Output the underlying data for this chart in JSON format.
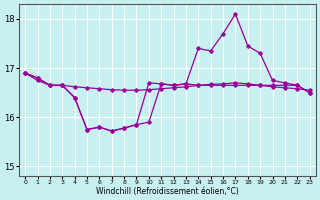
{
  "xlabel": "Windchill (Refroidissement éolien,°C)",
  "bg_color": "#c8f0f0",
  "line_color": "#990099",
  "grid_color": "#ffffff",
  "xlim": [
    -0.5,
    23.5
  ],
  "ylim": [
    14.8,
    18.3
  ],
  "yticks": [
    15,
    16,
    17,
    18
  ],
  "xticks": [
    0,
    1,
    2,
    3,
    4,
    5,
    6,
    7,
    8,
    9,
    10,
    11,
    12,
    13,
    14,
    15,
    16,
    17,
    18,
    19,
    20,
    21,
    22,
    23
  ],
  "hours": [
    0,
    1,
    2,
    3,
    4,
    5,
    6,
    7,
    8,
    9,
    10,
    11,
    12,
    13,
    14,
    15,
    16,
    17,
    18,
    19,
    20,
    21,
    22,
    23
  ],
  "line_flat": [
    16.9,
    16.75,
    16.65,
    16.65,
    16.62,
    16.6,
    16.58,
    16.56,
    16.55,
    16.55,
    16.56,
    16.58,
    16.6,
    16.62,
    16.65,
    16.67,
    16.68,
    16.7,
    16.68,
    16.65,
    16.62,
    16.6,
    16.58,
    16.55
  ],
  "line_dip": [
    16.9,
    16.8,
    16.65,
    16.65,
    16.4,
    15.75,
    15.8,
    15.72,
    15.78,
    15.85,
    16.7,
    16.68,
    16.65,
    16.68,
    16.65,
    16.65,
    16.65,
    16.65,
    16.65,
    16.65,
    16.65,
    16.65,
    16.65,
    16.5
  ],
  "line_peak": [
    16.9,
    16.8,
    16.65,
    16.65,
    16.4,
    15.75,
    15.8,
    15.72,
    15.78,
    15.85,
    15.9,
    16.68,
    16.65,
    16.68,
    17.4,
    17.35,
    17.7,
    18.1,
    17.45,
    17.3,
    16.75,
    16.7,
    16.65,
    16.5
  ]
}
